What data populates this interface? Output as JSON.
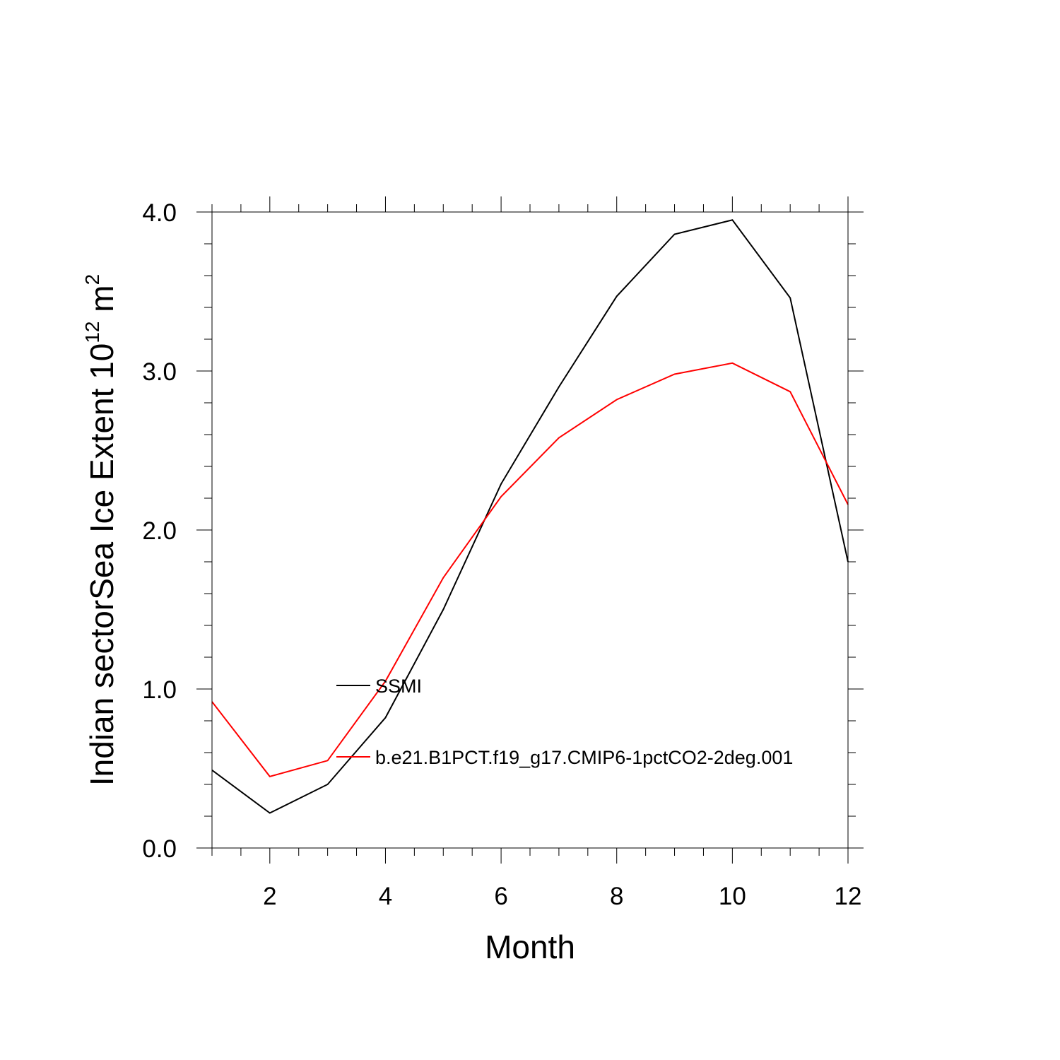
{
  "chart_data": {
    "type": "line",
    "xlabel": "Month",
    "ylabel": {
      "main": "Indian sectorSea Ice Extent 10",
      "exponent": "12",
      "unit": " m",
      "unit_exponent": "2"
    },
    "xlim": [
      1,
      12
    ],
    "ylim": [
      0,
      4
    ],
    "x_ticks": [
      2,
      4,
      6,
      8,
      10,
      12
    ],
    "x_tick_labels": [
      "2",
      "4",
      "6",
      "8",
      "10",
      "12"
    ],
    "y_ticks": [
      0,
      1,
      2,
      3,
      4
    ],
    "y_tick_labels": [
      "0.0",
      "1.0",
      "2.0",
      "3.0",
      "4.0"
    ],
    "grid": false,
    "legend_position": "center-left inside plot",
    "x": [
      1,
      2,
      3,
      4,
      5,
      6,
      7,
      8,
      9,
      10,
      11,
      12
    ],
    "series": [
      {
        "name": "SSMI",
        "color": "#000000",
        "values": [
          0.49,
          0.22,
          0.4,
          0.82,
          1.5,
          2.29,
          2.9,
          3.47,
          3.86,
          3.95,
          3.46,
          1.8
        ]
      },
      {
        "name": "b.e21.B1PCT.f19_g17.CMIP6-1pctCO2-2deg.001",
        "color": "#ff0000",
        "values": [
          0.92,
          0.45,
          0.55,
          1.05,
          1.7,
          2.21,
          2.58,
          2.82,
          2.98,
          3.05,
          2.87,
          2.16
        ]
      }
    ]
  }
}
